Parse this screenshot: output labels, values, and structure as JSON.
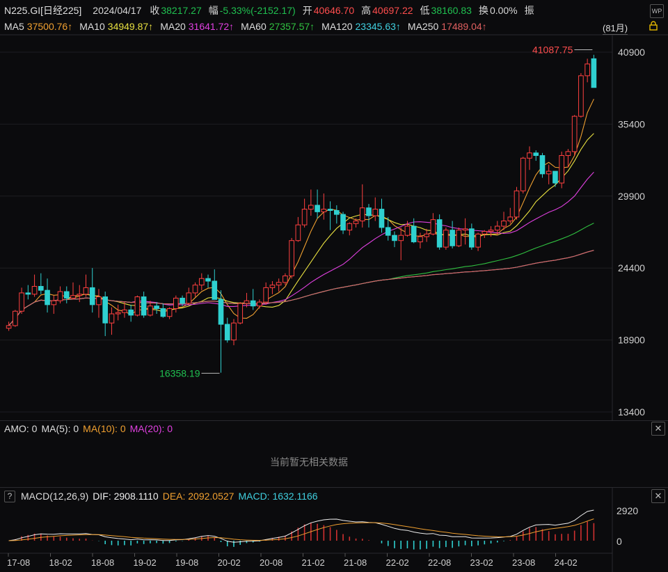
{
  "header": {
    "symbol": "N225.GI[日经225]",
    "date": "2024/04/17",
    "close_label": "收",
    "close": "38217.27",
    "change_label": "幅",
    "change": "-5.33%(-2152.17)",
    "open_label": "开",
    "open": "40646.70",
    "high_label": "高",
    "high": "40697.22",
    "low_label": "低",
    "low": "38160.83",
    "turnover_label": "换",
    "turnover": "0.00%",
    "amp_label": "振",
    "period_button": "(81月)"
  },
  "ma_legend": [
    {
      "label": "MA5",
      "value": "37500.76↑",
      "color": "#f0a030"
    },
    {
      "label": "MA10",
      "value": "34949.87↑",
      "color": "#e8e040"
    },
    {
      "label": "MA20",
      "value": "31641.72↑",
      "color": "#e040e0"
    },
    {
      "label": "MA60",
      "value": "27357.57↑",
      "color": "#30c040"
    },
    {
      "label": "MA120",
      "value": "23345.63↑",
      "color": "#40d0e0"
    },
    {
      "label": "MA250",
      "value": "17489.04↑",
      "color": "#e06060"
    }
  ],
  "amo_panel": {
    "amo": "AMO: 0",
    "ma5": "MA(5): 0",
    "ma10": "MA(10): 0",
    "ma20": "MA(20): 0",
    "empty_message": "当前暂无相关数据"
  },
  "macd_panel": {
    "help": "?",
    "title": "MACD(12,26,9)",
    "dif": "DIF: 2908.1110",
    "dea": "DEA: 2092.0527",
    "macd": "MACD: 1632.1166"
  },
  "colors": {
    "up": "#ff4040",
    "down": "#2fd0d0",
    "grid": "#1e1e22"
  },
  "chart_data": {
    "type": "candlestick",
    "y_ticks": [
      40900,
      35400,
      29900,
      24400,
      18900,
      13400
    ],
    "x_labels": [
      "17-08",
      "18-02",
      "18-08",
      "19-02",
      "19-08",
      "20-02",
      "20-08",
      "21-02",
      "21-08",
      "22-02",
      "22-08",
      "23-02",
      "23-08",
      "24-02"
    ],
    "annotations": [
      {
        "text": "41087.75",
        "value": 41087.75,
        "color": "#ff4d4d"
      },
      {
        "text": "16358.19",
        "value": 16358.19,
        "color": "#20c050"
      }
    ],
    "macd_ticks": [
      "2920",
      "0"
    ],
    "candles": [
      [
        19800,
        20300,
        19600,
        20000
      ],
      [
        20000,
        21200,
        19900,
        21100
      ],
      [
        21100,
        22900,
        20900,
        22500
      ],
      [
        22500,
        23100,
        22000,
        22400
      ],
      [
        22400,
        23900,
        22200,
        23000
      ],
      [
        23000,
        24000,
        22400,
        22700
      ],
      [
        22700,
        23600,
        21000,
        21600
      ],
      [
        21600,
        22300,
        20900,
        21900
      ],
      [
        21900,
        23000,
        21700,
        22600
      ],
      [
        22600,
        23000,
        21700,
        22100
      ],
      [
        22100,
        23300,
        22000,
        22300
      ],
      [
        22300,
        23100,
        21800,
        22400
      ],
      [
        22400,
        23900,
        22200,
        22900
      ],
      [
        22900,
        24400,
        21000,
        21600
      ],
      [
        21600,
        22800,
        20600,
        22200
      ],
      [
        22200,
        22600,
        19200,
        20200
      ],
      [
        20200,
        21400,
        19300,
        20900
      ],
      [
        20900,
        21600,
        20400,
        21000
      ],
      [
        21000,
        21800,
        20600,
        21200
      ],
      [
        21200,
        21600,
        20300,
        20800
      ],
      [
        20800,
        22300,
        20700,
        22200
      ],
      [
        22200,
        22600,
        20600,
        20800
      ],
      [
        20800,
        21900,
        20700,
        21500
      ],
      [
        21500,
        21800,
        20900,
        21300
      ],
      [
        21300,
        21700,
        20600,
        20700
      ],
      [
        20700,
        21400,
        20500,
        21300
      ],
      [
        21300,
        22300,
        21000,
        22100
      ],
      [
        22100,
        22300,
        21500,
        21700
      ],
      [
        21700,
        22900,
        21600,
        22500
      ],
      [
        22500,
        23300,
        22200,
        23100
      ],
      [
        23100,
        24000,
        22700,
        23600
      ],
      [
        23600,
        23900,
        22900,
        23400
      ],
      [
        23400,
        24300,
        22000,
        22000
      ],
      [
        22000,
        22700,
        16400,
        20100
      ],
      [
        20100,
        20600,
        18700,
        18900
      ],
      [
        18900,
        20500,
        18500,
        20200
      ],
      [
        20200,
        21800,
        20100,
        21700
      ],
      [
        21700,
        22500,
        21400,
        21900
      ],
      [
        21900,
        22800,
        21200,
        21500
      ],
      [
        21500,
        22000,
        21300,
        21800
      ],
      [
        21800,
        23300,
        21600,
        22900
      ],
      [
        22900,
        23400,
        22400,
        23100
      ],
      [
        23100,
        23600,
        22600,
        23300
      ],
      [
        23300,
        24000,
        23100,
        23800
      ],
      [
        23800,
        26700,
        23600,
        26500
      ],
      [
        26500,
        28300,
        26400,
        27700
      ],
      [
        27700,
        29700,
        27500,
        28900
      ],
      [
        28900,
        30400,
        28400,
        29200
      ],
      [
        29200,
        30400,
        28200,
        28700
      ],
      [
        28700,
        30100,
        28100,
        28900
      ],
      [
        28900,
        29500,
        27300,
        28800
      ],
      [
        28800,
        29200,
        27800,
        28500
      ],
      [
        28500,
        28700,
        27000,
        27300
      ],
      [
        27300,
        27900,
        26900,
        27800
      ],
      [
        27800,
        28200,
        27500,
        28000
      ],
      [
        28000,
        30800,
        27500,
        29000
      ],
      [
        29000,
        29300,
        27500,
        28400
      ],
      [
        28400,
        29800,
        28000,
        28900
      ],
      [
        28900,
        29700,
        27100,
        27500
      ],
      [
        27500,
        28300,
        26500,
        26900
      ],
      [
        26900,
        27200,
        26000,
        26500
      ],
      [
        26500,
        27500,
        25000,
        26900
      ],
      [
        26900,
        28000,
        26800,
        27600
      ],
      [
        27600,
        28200,
        26300,
        26400
      ],
      [
        26400,
        27100,
        25900,
        26800
      ],
      [
        26800,
        27400,
        26400,
        27000
      ],
      [
        27000,
        28600,
        26900,
        28100
      ],
      [
        28100,
        28500,
        25800,
        26000
      ],
      [
        26000,
        27500,
        25800,
        27300
      ],
      [
        27300,
        28000,
        25900,
        26100
      ],
      [
        26100,
        27500,
        26000,
        27300
      ],
      [
        27300,
        28200,
        26200,
        27400
      ],
      [
        27400,
        27800,
        25800,
        26000
      ],
      [
        26000,
        27100,
        25700,
        27000
      ],
      [
        27000,
        27300,
        26700,
        27200
      ],
      [
        27200,
        27600,
        26800,
        27300
      ],
      [
        27300,
        28000,
        26900,
        27600
      ],
      [
        27600,
        28700,
        27300,
        28000
      ],
      [
        28000,
        29000,
        27800,
        28300
      ],
      [
        28300,
        30600,
        28100,
        30300
      ],
      [
        30300,
        32900,
        30100,
        32800
      ],
      [
        32800,
        33700,
        31900,
        33200
      ],
      [
        33200,
        33400,
        32600,
        33000
      ],
      [
        33000,
        33200,
        31300,
        31600
      ],
      [
        31600,
        32300,
        30800,
        31800
      ],
      [
        31800,
        31800,
        30600,
        30900
      ],
      [
        30900,
        33300,
        30500,
        33000
      ],
      [
        33000,
        33500,
        32100,
        33300
      ],
      [
        33300,
        36100,
        33000,
        36000
      ],
      [
        36000,
        39300,
        35900,
        39100
      ],
      [
        39100,
        40400,
        38600,
        40000
      ],
      [
        40400,
        40700,
        38200,
        38200
      ]
    ]
  }
}
